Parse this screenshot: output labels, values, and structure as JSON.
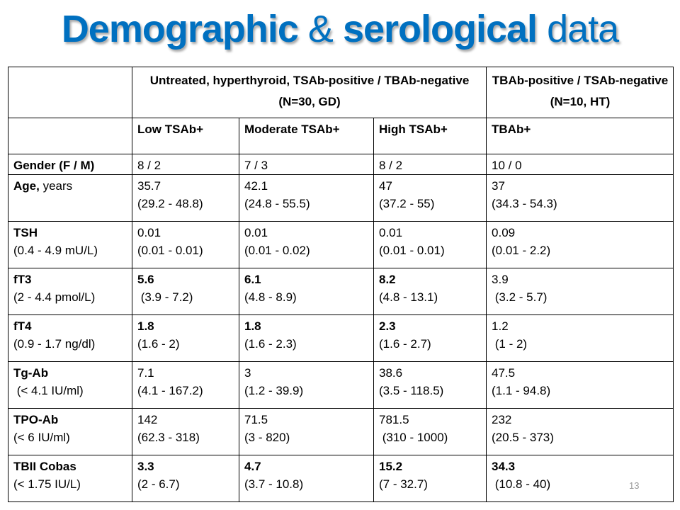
{
  "title": {
    "part1": "Demographic",
    "part2": "&",
    "part3": "serological",
    "part4": "data"
  },
  "colors": {
    "title": "#0070C0"
  },
  "table": {
    "group_headers": [
      "",
      "Untreated, hyperthyroid,  TSAb-positive / TBAb-negative (N=30, GD)",
      "TBAb-positive / TSAb-negative (N=10, HT)"
    ],
    "column_headers": [
      "",
      "Low TSAb+",
      "Moderate TSAb+",
      "High TSAb+",
      "TBAb+"
    ],
    "rows": [
      {
        "label": "Gender (F / M)",
        "label_sub": "",
        "cells": [
          {
            "v": "8 / 2",
            "r": ""
          },
          {
            "v": "7 / 3",
            "r": ""
          },
          {
            "v": "8 / 2",
            "r": ""
          },
          {
            "v": "10 / 0",
            "r": ""
          }
        ]
      },
      {
        "label": "Age,",
        "label_suffix": " years",
        "label_sub": "",
        "cells": [
          {
            "v": "35.7",
            "r": "(29.2 - 48.8)"
          },
          {
            "v": "42.1",
            "r": "(24.8 - 55.5)"
          },
          {
            "v": "47",
            "r": "(37.2 - 55)"
          },
          {
            "v": "37",
            "r": "(34.3 - 54.3)"
          }
        ]
      },
      {
        "label": "TSH",
        "label_sub": "(0.4 - 4.9 mU/L)",
        "cells": [
          {
            "v": "0.01",
            "r": "(0.01 - 0.01)"
          },
          {
            "v": "0.01",
            "r": "(0.01 - 0.02)"
          },
          {
            "v": "0.01",
            "r": "(0.01 - 0.01)"
          },
          {
            "v": "0.09",
            "r": "(0.01 - 2.2)"
          }
        ]
      },
      {
        "label": "fT3",
        "label_sub": "(2 - 4.4 pmol/L)",
        "cells": [
          {
            "v": "5.6",
            "r": " (3.9 - 7.2)",
            "b": true
          },
          {
            "v": "6.1",
            "r": "(4.8 - 8.9)",
            "b": true
          },
          {
            "v": "8.2",
            "r": "(4.8 - 13.1)",
            "b": true
          },
          {
            "v": "3.9",
            "r": " (3.2 - 5.7)"
          }
        ]
      },
      {
        "label": "fT4",
        "label_sub": "(0.9 - 1.7 ng/dl)",
        "cells": [
          {
            "v": "1.8",
            "r": "(1.6 - 2)",
            "b": true
          },
          {
            "v": "1.8",
            "r": "(1.6 - 2.3)",
            "b": true
          },
          {
            "v": "2.3",
            "r": "(1.6 - 2.7)",
            "b": true
          },
          {
            "v": "1.2",
            "r": " (1 - 2)"
          }
        ]
      },
      {
        "label": "Tg-Ab",
        "label_sub": " (< 4.1 IU/ml)",
        "cells": [
          {
            "v": "7.1",
            "r": "(4.1 - 167.2)"
          },
          {
            "v": "3",
            "r": "(1.2 - 39.9)"
          },
          {
            "v": "38.6",
            "r": "(3.5 - 118.5)"
          },
          {
            "v": "47.5",
            "r": "(1.1 - 94.8)"
          }
        ]
      },
      {
        "label": "TPO-Ab",
        "label_sub": "(< 6 IU/ml)",
        "cells": [
          {
            "v": "142",
            "r": "(62.3 - 318)"
          },
          {
            "v": "71.5",
            "r": "(3 - 820)"
          },
          {
            "v": "781.5",
            "r": " (310 - 1000)"
          },
          {
            "v": "232",
            "r": "(20.5 - 373)"
          }
        ]
      },
      {
        "label": "TBII Cobas",
        "label_sub": "(< 1.75 IU/L)",
        "cells": [
          {
            "v": "3.3",
            "r": "(2 - 6.7)",
            "b": true
          },
          {
            "v": "4.7",
            "r": "(3.7 - 10.8)",
            "b": true
          },
          {
            "v": "15.2",
            "r": "(7 - 32.7)",
            "b": true
          },
          {
            "v": "34.3",
            "r": " (10.8 - 40)",
            "b": true
          }
        ]
      }
    ]
  },
  "page_number": "13"
}
